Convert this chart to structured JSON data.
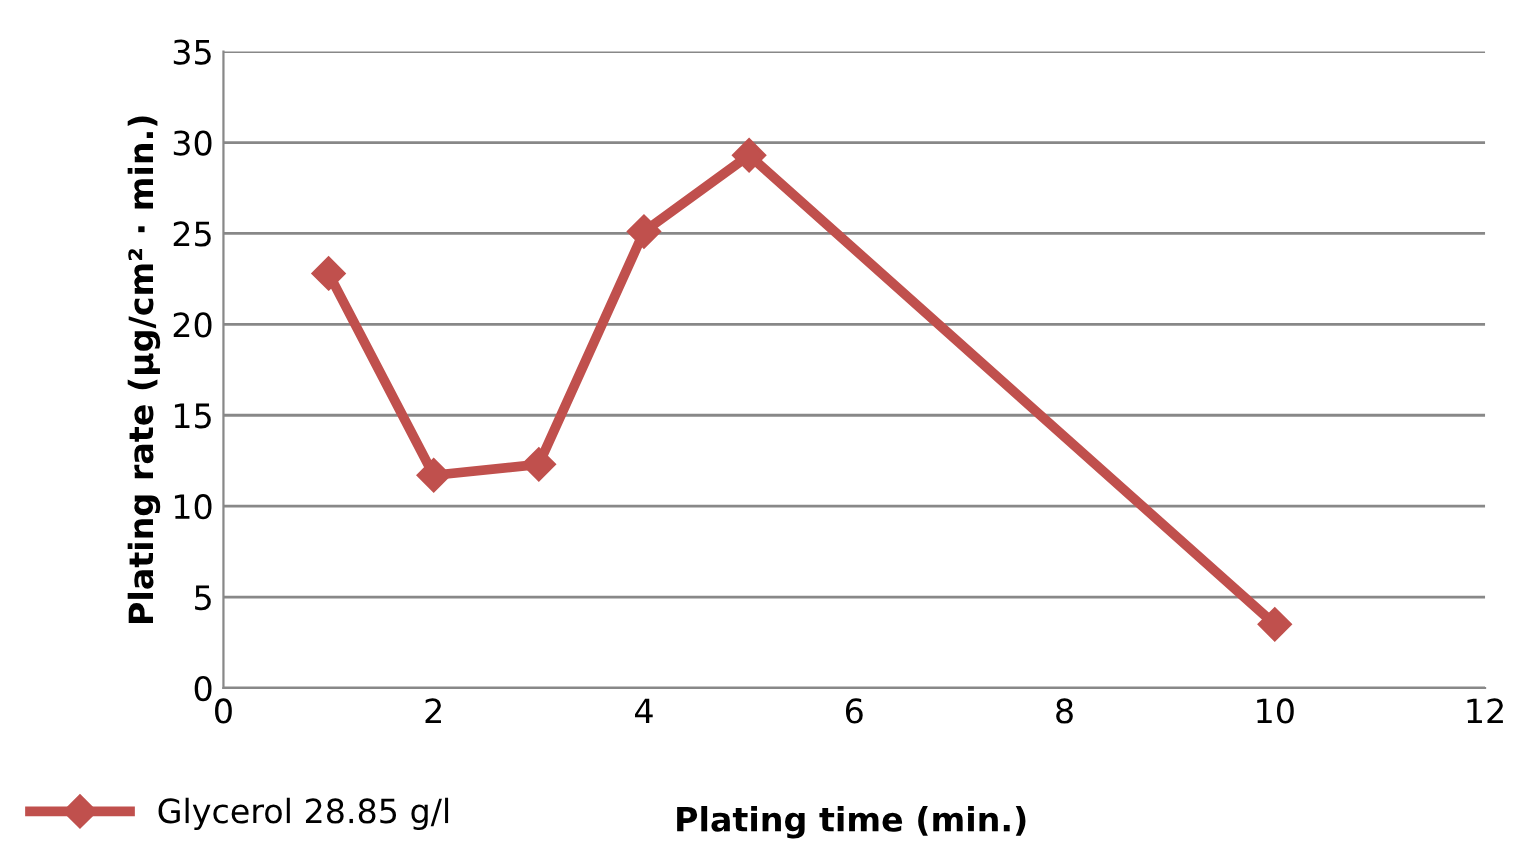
{
  "chart_data": {
    "type": "line",
    "xlabel": "Plating time (min.)",
    "ylabel": "Plating rate (µg/cm² · min.)",
    "series": [
      {
        "name": "Glycerol 28.85 g/l",
        "color": "#c0504d",
        "x": [
          1,
          2,
          3,
          4,
          5,
          10
        ],
        "values": [
          22.8,
          11.7,
          12.3,
          25.1,
          29.3,
          3.5
        ]
      }
    ],
    "xlim": [
      0,
      12
    ],
    "xticks": [
      0,
      2,
      4,
      6,
      8,
      10,
      12
    ],
    "ylim": [
      0,
      35
    ],
    "yticks": [
      0,
      5,
      10,
      15,
      20,
      25,
      30,
      35
    ],
    "grid": "y",
    "legend": "bottom",
    "marker": "diamond",
    "line_style": "solid"
  }
}
